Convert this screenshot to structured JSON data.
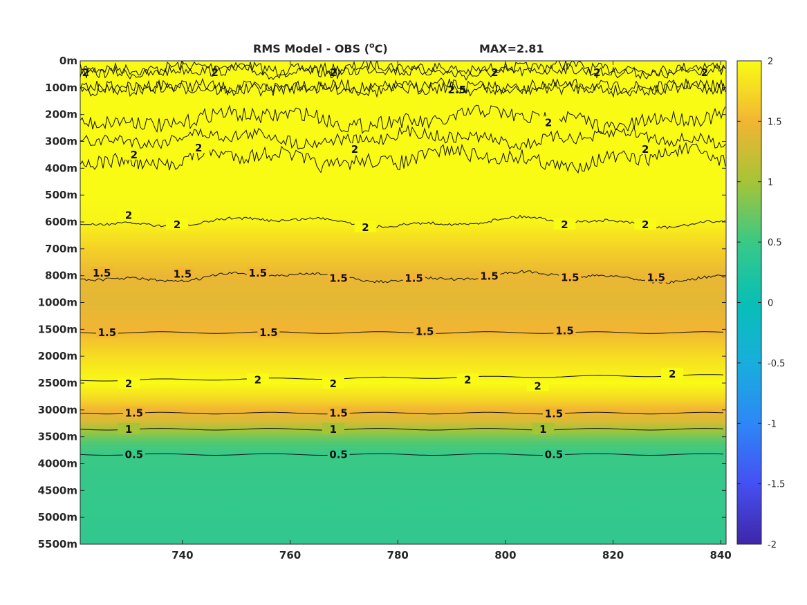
{
  "chart_data": {
    "type": "heatmap",
    "title": "RMS Model - OBS (",
    "title_unit": "C)",
    "title_degree": "o",
    "max_label": "MAX=2.81",
    "x": {
      "ticks": [
        740,
        760,
        780,
        800,
        820,
        840
      ],
      "tick_labels": [
        "740",
        "760",
        "780",
        "800",
        "820",
        "840"
      ],
      "range": [
        721,
        841
      ]
    },
    "y": {
      "tick_labels": [
        "0m",
        "100m",
        "200m",
        "300m",
        "400m",
        "500m",
        "600m",
        "700m",
        "800m",
        "1000m",
        "1500m",
        "2000m",
        "2500m",
        "3000m",
        "3500m",
        "4000m",
        "4500m",
        "5000m",
        "5500m"
      ],
      "depths": [
        0,
        100,
        200,
        300,
        400,
        500,
        600,
        700,
        800,
        1000,
        1500,
        2000,
        2500,
        3000,
        3500,
        4000,
        4500,
        5000,
        5500
      ],
      "reversed": true
    },
    "colorbar": {
      "ticks": [
        2,
        1.5,
        1,
        0.5,
        0,
        -0.5,
        -1,
        -1.5,
        -2
      ],
      "tick_labels": [
        "2",
        "1.5",
        "1",
        "0.5",
        "0",
        "-0.5",
        "-1",
        "-1.5",
        "-2"
      ],
      "range": [
        -2,
        2
      ],
      "colormap": "parula"
    },
    "profile": [
      {
        "depth": 0,
        "value": 2.0
      },
      {
        "depth": 100,
        "value": 2.0
      },
      {
        "depth": 300,
        "value": 2.0
      },
      {
        "depth": 500,
        "value": 2.0
      },
      {
        "depth": 600,
        "value": 1.95
      },
      {
        "depth": 700,
        "value": 1.7
      },
      {
        "depth": 800,
        "value": 1.45
      },
      {
        "depth": 1000,
        "value": 1.4
      },
      {
        "depth": 1500,
        "value": 1.5
      },
      {
        "depth": 2000,
        "value": 1.78
      },
      {
        "depth": 2500,
        "value": 2.0
      },
      {
        "depth": 2750,
        "value": 1.8
      },
      {
        "depth": 3000,
        "value": 1.5
      },
      {
        "depth": 3200,
        "value": 1.35
      },
      {
        "depth": 3400,
        "value": 0.95
      },
      {
        "depth": 3600,
        "value": 0.62
      },
      {
        "depth": 3800,
        "value": 0.5
      },
      {
        "depth": 4500,
        "value": 0.45
      },
      {
        "depth": 5500,
        "value": 0.42
      }
    ],
    "contours": [
      {
        "level": "2",
        "depth_from": 180,
        "depth_to": 400,
        "style": "noisy-band",
        "labels": [
          {
            "x": 731,
            "depth": 350
          },
          {
            "x": 743,
            "depth": 325
          },
          {
            "x": 772,
            "depth": 330
          },
          {
            "x": 808,
            "depth": 230
          },
          {
            "x": 826,
            "depth": 330
          }
        ]
      },
      {
        "level": "2",
        "depth": 600,
        "style": "wavy",
        "labels": [
          {
            "x": 730,
            "depth": 575
          },
          {
            "x": 739,
            "depth": 610
          },
          {
            "x": 774,
            "depth": 620
          },
          {
            "x": 811,
            "depth": 610
          },
          {
            "x": 826,
            "depth": 610
          }
        ]
      },
      {
        "level": "1.5",
        "depth": 810,
        "style": "wavy",
        "labels": [
          {
            "x": 725,
            "depth": 790
          },
          {
            "x": 740,
            "depth": 795
          },
          {
            "x": 754,
            "depth": 790
          },
          {
            "x": 769,
            "depth": 820
          },
          {
            "x": 783,
            "depth": 820
          },
          {
            "x": 797,
            "depth": 805
          },
          {
            "x": 812,
            "depth": 815
          },
          {
            "x": 828,
            "depth": 815
          }
        ]
      },
      {
        "level": "1.5",
        "depth": 1560,
        "labels": [
          {
            "x": 726,
            "depth": 1560
          },
          {
            "x": 756,
            "depth": 1560
          },
          {
            "x": 785,
            "depth": 1540
          },
          {
            "x": 811,
            "depth": 1530
          }
        ]
      },
      {
        "level": "2",
        "depth": 2450,
        "labels": [
          {
            "x": 730,
            "depth": 2510
          },
          {
            "x": 754,
            "depth": 2440
          },
          {
            "x": 768,
            "depth": 2510
          },
          {
            "x": 793,
            "depth": 2440
          },
          {
            "x": 806,
            "depth": 2560
          },
          {
            "x": 831,
            "depth": 2330
          }
        ]
      },
      {
        "level": "1.5",
        "depth": 3060,
        "labels": [
          {
            "x": 731,
            "depth": 3060
          },
          {
            "x": 769,
            "depth": 3060
          },
          {
            "x": 809,
            "depth": 3070
          }
        ]
      },
      {
        "level": "1",
        "depth": 3360,
        "labels": [
          {
            "x": 730,
            "depth": 3360
          },
          {
            "x": 768,
            "depth": 3360
          },
          {
            "x": 807,
            "depth": 3360
          }
        ]
      },
      {
        "level": "0.5",
        "depth": 3830,
        "labels": [
          {
            "x": 731,
            "depth": 3830
          },
          {
            "x": 769,
            "depth": 3830
          },
          {
            "x": 809,
            "depth": 3830
          }
        ]
      }
    ],
    "top_labels": {
      "level": "2",
      "label_alt": "2.5"
    }
  }
}
